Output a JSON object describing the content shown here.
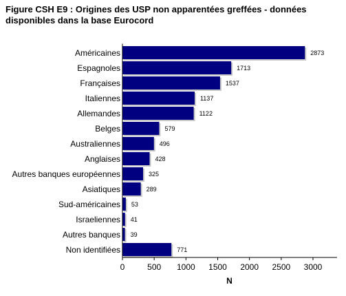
{
  "title": "Figure CSH E9 : Origines des USP non apparentées greffées - données disponibles dans la base Eurocord",
  "colors": {
    "bar": "#000080",
    "bar_shadow": "#c8c8c8",
    "axis": "#000000",
    "text": "#000000"
  },
  "chart_data": {
    "type": "bar",
    "orientation": "horizontal",
    "title": "Figure CSH E9 : Origines des USP non apparentées greffées - données disponibles dans la base Eurocord",
    "categories": [
      "Américaines",
      "Espagnoles",
      "Françaises",
      "Italiennes",
      "Allemandes",
      "Belges",
      "Australiennes",
      "Anglaises",
      "Autres banques européennes",
      "Asiatiques",
      "Sud-américaines",
      "Israeliennes",
      "Autres banques",
      "Non identifiées"
    ],
    "values": [
      2873,
      1713,
      1537,
      1137,
      1122,
      579,
      496,
      428,
      325,
      289,
      53,
      41,
      39,
      771
    ],
    "data_labels": [
      "2873",
      "1713",
      "1537",
      "1137",
      "1122",
      "579",
      "496",
      "428",
      "325",
      "289",
      "53",
      "41",
      "39",
      "771"
    ],
    "xlabel": "N",
    "ylabel": "",
    "xlim": [
      0,
      3000
    ],
    "xticks": [
      0,
      500,
      1000,
      1500,
      2000,
      2500,
      3000
    ],
    "xtick_labels": [
      "0",
      "500",
      "1000",
      "1500",
      "2000",
      "2500",
      "3000"
    ],
    "grid": false,
    "legend": "none"
  }
}
